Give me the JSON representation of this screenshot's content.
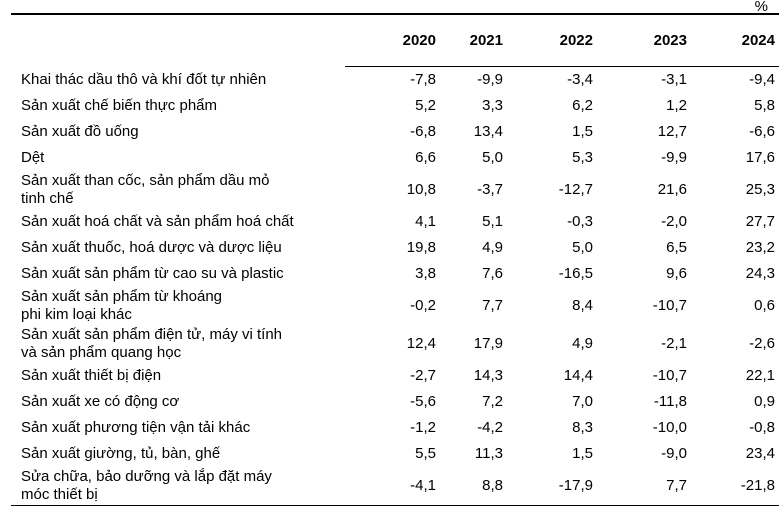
{
  "chart_data": {
    "type": "table",
    "title": "",
    "unit": "%",
    "columns": [
      "2020",
      "2021",
      "2022",
      "2023",
      "2024"
    ],
    "decimal_separator": ",",
    "text_color": "#000000",
    "background_color": "#ffffff",
    "rows": [
      {
        "label_lines": [
          "Khai thác dầu thô và khí đốt tự nhiên"
        ],
        "values": [
          -7.8,
          -9.9,
          -3.4,
          -3.1,
          -9.4
        ]
      },
      {
        "label_lines": [
          "Sản xuất chế biến thực phẩm"
        ],
        "values": [
          5.2,
          3.3,
          6.2,
          1.2,
          5.8
        ]
      },
      {
        "label_lines": [
          "Sản xuất đồ uống"
        ],
        "values": [
          -6.8,
          13.4,
          1.5,
          12.7,
          -6.6
        ]
      },
      {
        "label_lines": [
          "Dệt"
        ],
        "values": [
          6.6,
          5.0,
          5.3,
          -9.9,
          17.6
        ]
      },
      {
        "label_lines": [
          "Sản xuất than cốc, sản phẩm dầu mỏ",
          "tinh chế"
        ],
        "values": [
          10.8,
          -3.7,
          -12.7,
          21.6,
          25.3
        ]
      },
      {
        "label_lines": [
          "Sản xuất hoá chất và sản phẩm hoá chất"
        ],
        "values": [
          4.1,
          5.1,
          -0.3,
          -2.0,
          27.7
        ]
      },
      {
        "label_lines": [
          "Sản xuất thuốc, hoá dược và dược liệu"
        ],
        "values": [
          19.8,
          4.9,
          5.0,
          6.5,
          23.2
        ]
      },
      {
        "label_lines": [
          "Sản xuất sản phẩm từ cao su và plastic"
        ],
        "values": [
          3.8,
          7.6,
          -16.5,
          9.6,
          24.3
        ]
      },
      {
        "label_lines": [
          "Sản xuất sản phẩm từ khoáng",
          "phi kim loại khác"
        ],
        "values": [
          -0.2,
          7.7,
          8.4,
          -10.7,
          0.6
        ]
      },
      {
        "label_lines": [
          "Sản xuất sản phẩm điện tử, máy vi tính",
          "và sản phẩm quang học"
        ],
        "values": [
          12.4,
          17.9,
          4.9,
          -2.1,
          -2.6
        ]
      },
      {
        "label_lines": [
          "Sản xuất thiết bị điện"
        ],
        "values": [
          -2.7,
          14.3,
          14.4,
          -10.7,
          22.1
        ]
      },
      {
        "label_lines": [
          "Sản xuất xe có động cơ"
        ],
        "values": [
          -5.6,
          7.2,
          7.0,
          -11.8,
          0.9
        ]
      },
      {
        "label_lines": [
          "Sản xuất phương tiện vận tải khác"
        ],
        "values": [
          -1.2,
          -4.2,
          8.3,
          -10.0,
          -0.8
        ]
      },
      {
        "label_lines": [
          "Sản xuất giường, tủ, bàn, ghế"
        ],
        "values": [
          5.5,
          11.3,
          1.5,
          -9.0,
          23.4
        ]
      },
      {
        "label_lines": [
          "Sửa chữa, bảo dưỡng và lắp đặt máy",
          "móc thiết bị"
        ],
        "values": [
          -4.1,
          8.8,
          -17.9,
          7.7,
          -21.8
        ]
      }
    ]
  }
}
